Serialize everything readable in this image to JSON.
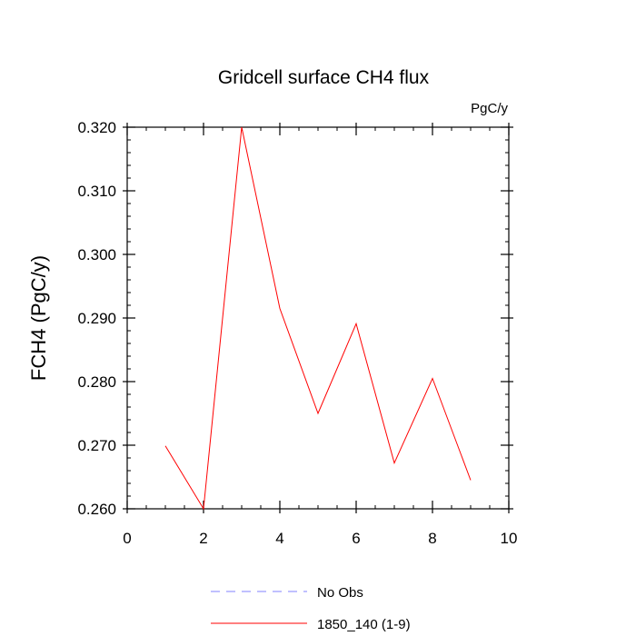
{
  "chart_data": {
    "type": "line",
    "title": "Gridcell surface CH4 flux",
    "units_label": "PgC/y",
    "xlabel": "",
    "ylabel": "FCH4  (PgC/y)",
    "xlim": [
      0,
      10
    ],
    "ylim": [
      0.26,
      0.32
    ],
    "x_ticks": [
      0,
      2,
      4,
      6,
      8,
      10
    ],
    "x_tick_labels": [
      "0",
      "2",
      "4",
      "6",
      "8",
      "10"
    ],
    "y_ticks": [
      0.26,
      0.27,
      0.28,
      0.29,
      0.3,
      0.31,
      0.32
    ],
    "y_tick_labels": [
      "0.260",
      "0.270",
      "0.280",
      "0.290",
      "0.300",
      "0.310",
      "0.320"
    ],
    "grid": false,
    "legend_position": "bottom",
    "series": [
      {
        "name": "1850_140 (1-9)",
        "color": "#ff0000",
        "style": "solid",
        "x": [
          1,
          2,
          3,
          4,
          5,
          6,
          7,
          8,
          9
        ],
        "y": [
          0.2699,
          0.26,
          0.32,
          0.2915,
          0.275,
          0.2891,
          0.2672,
          0.2805,
          0.2645
        ]
      }
    ],
    "legend": [
      {
        "label": "No Obs",
        "color": "#8080ff",
        "style": "dashed"
      },
      {
        "label": "1850_140 (1-9)",
        "color": "#ff0000",
        "style": "solid"
      }
    ]
  }
}
